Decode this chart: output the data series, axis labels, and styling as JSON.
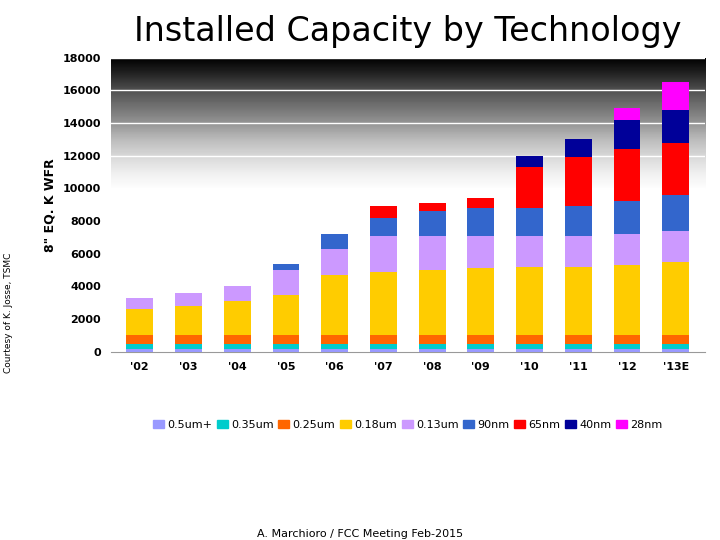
{
  "title": "Installed Capacity by Technology",
  "ylabel": "8\" EQ. K WFR",
  "xlabel_bottom": "A. Marchioro / FCC Meeting Feb-2015",
  "sidebar_text": "Courtesy of K. Josse, TSMC",
  "years": [
    "'02",
    "'03",
    "'04",
    "'05",
    "'06",
    "'07",
    "'08",
    "'09",
    "'10",
    "'11",
    "'12",
    "'13E"
  ],
  "technologies": [
    "0.5um+",
    "0.35um",
    "0.25um",
    "0.18um",
    "0.13um",
    "90nm",
    "65nm",
    "40nm",
    "28nm"
  ],
  "colors": [
    "#9999ff",
    "#00cccc",
    "#ff6600",
    "#ffcc00",
    "#cc99ff",
    "#3366cc",
    "#ff0000",
    "#000099",
    "#ff00ff"
  ],
  "data": {
    "0.5um+": [
      200,
      200,
      200,
      200,
      200,
      200,
      200,
      200,
      200,
      200,
      200,
      200
    ],
    "0.35um": [
      300,
      300,
      300,
      300,
      300,
      300,
      300,
      300,
      300,
      300,
      300,
      300
    ],
    "0.25um": [
      500,
      500,
      500,
      500,
      500,
      500,
      500,
      500,
      500,
      500,
      500,
      500
    ],
    "0.18um": [
      1600,
      1800,
      2100,
      2500,
      3700,
      3900,
      4000,
      4100,
      4200,
      4200,
      4300,
      4500
    ],
    "0.13um": [
      700,
      800,
      900,
      1500,
      1600,
      2200,
      2100,
      2000,
      1900,
      1900,
      1900,
      1900
    ],
    "90nm": [
      0,
      0,
      0,
      400,
      900,
      1100,
      1500,
      1700,
      1700,
      1800,
      2000,
      2200
    ],
    "65nm": [
      0,
      0,
      0,
      0,
      0,
      700,
      500,
      600,
      2500,
      3000,
      3200,
      3200
    ],
    "40nm": [
      0,
      0,
      0,
      0,
      0,
      0,
      0,
      0,
      700,
      1100,
      1800,
      2000
    ],
    "28nm": [
      0,
      0,
      0,
      0,
      0,
      0,
      0,
      0,
      0,
      0,
      700,
      1700
    ]
  },
  "ylim": [
    0,
    18000
  ],
  "yticks": [
    0,
    2000,
    4000,
    6000,
    8000,
    10000,
    12000,
    14000,
    16000,
    18000
  ],
  "plot_bg_top": "#f8f8f8",
  "plot_bg_bottom": "#d0d0d0",
  "fig_bg": "#ffffff",
  "title_fontsize": 24,
  "axis_fontsize": 8,
  "legend_fontsize": 8,
  "ylabel_fontsize": 9
}
